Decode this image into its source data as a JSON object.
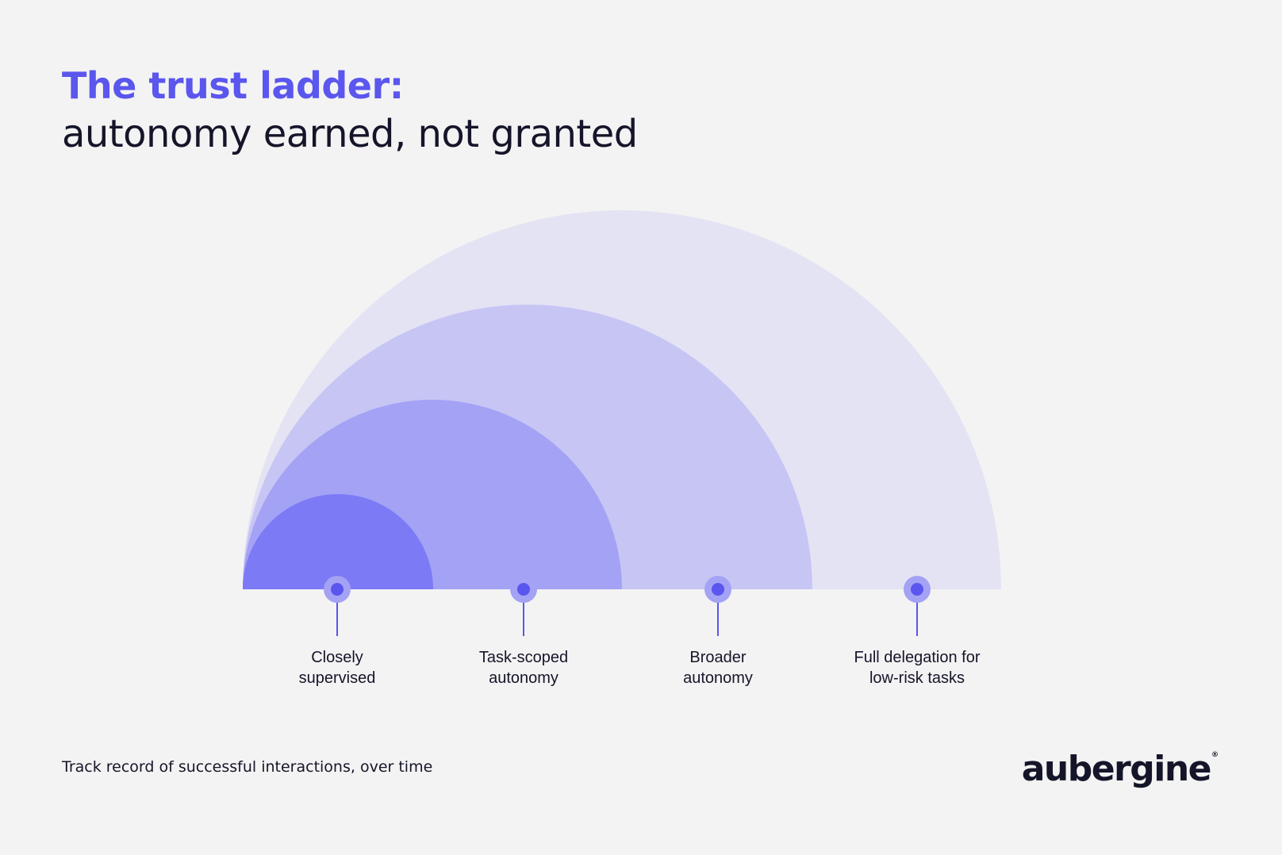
{
  "title": {
    "accent": "The trust ladder:",
    "main": "autonomy earned, not granted"
  },
  "stages": [
    {
      "label": "Closely\nsupervised"
    },
    {
      "label": "Task-scoped\nautonomy"
    },
    {
      "label": "Broader\nautonomy"
    },
    {
      "label": "Full delegation for\nlow-risk tasks"
    }
  ],
  "footer": {
    "caption": "Track record of successful interactions, over time"
  },
  "logo": {
    "text": "aubergine",
    "registered": "®"
  },
  "colors": {
    "background": "#f3f3f3",
    "accent": "#5a56ee",
    "text": "#15152a",
    "arc_fills": [
      "#e4e3f4",
      "#c7c5f4",
      "#a4a2f5",
      "#7c7af5"
    ],
    "marker_halo": "#a4a2f5",
    "marker_dot": "#5a56ee"
  }
}
